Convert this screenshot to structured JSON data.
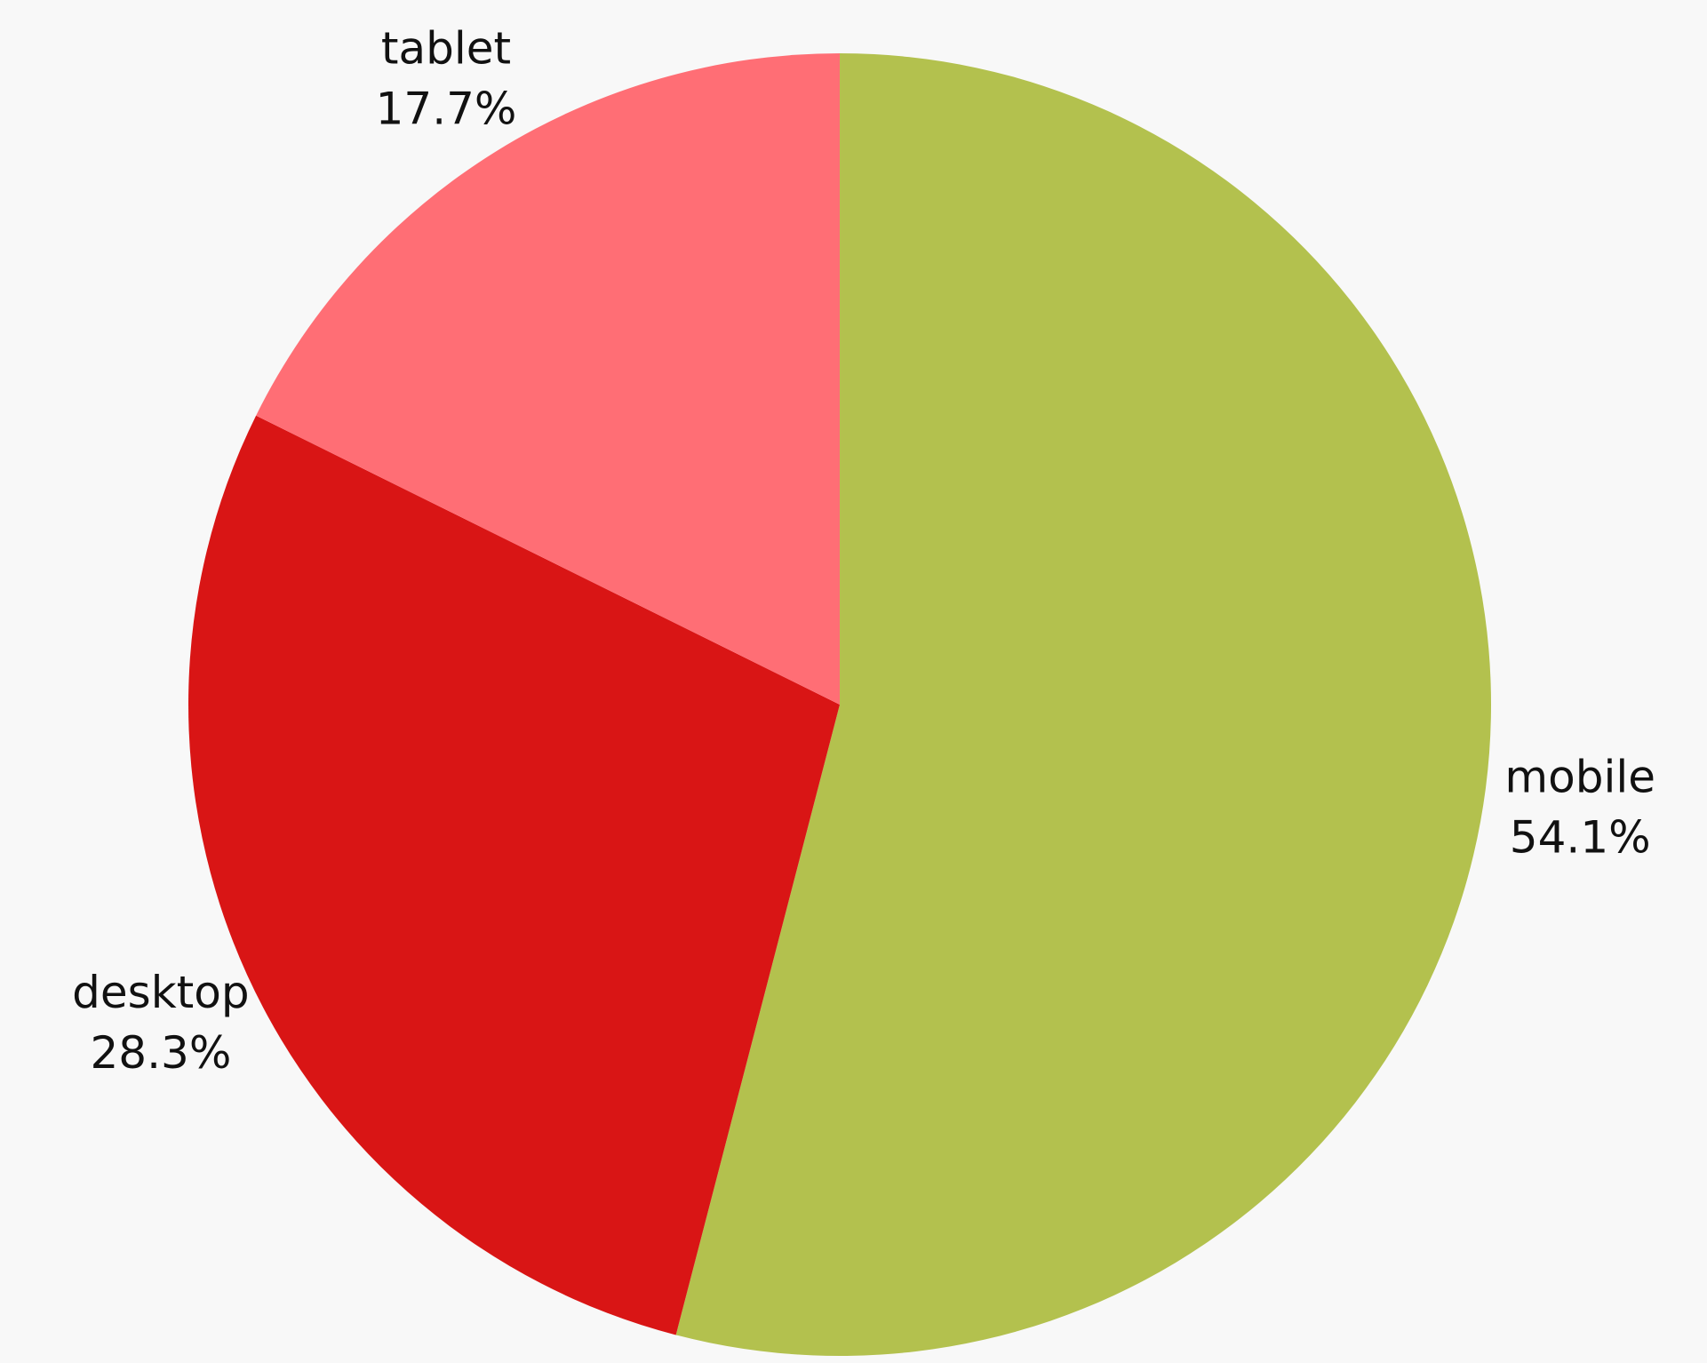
{
  "chart_data": {
    "type": "pie",
    "title": "",
    "start_angle_deg": 0,
    "direction": "clockwise",
    "slices": [
      {
        "label": "mobile",
        "value": 54.1,
        "value_label": "54.1%",
        "color": "#b3c14e"
      },
      {
        "label": "desktop",
        "value": 28.3,
        "value_label": "28.3%",
        "color": "#d91515"
      },
      {
        "label": "tablet",
        "value": 17.7,
        "value_label": "17.7%",
        "color": "#ff6e75"
      }
    ],
    "legend": "none",
    "background": "#f8f8f8"
  }
}
